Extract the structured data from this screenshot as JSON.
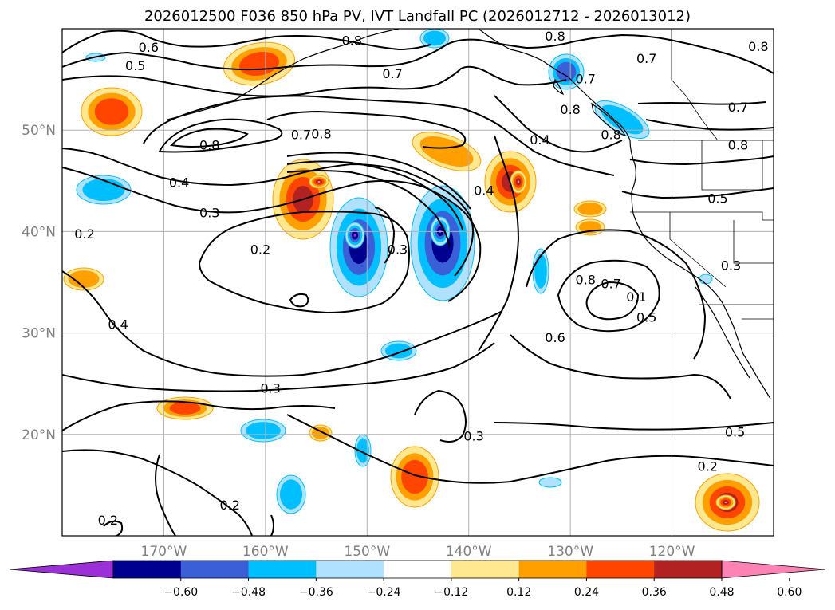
{
  "title": "2026012500 F036 850 hPa PV, IVT Landfall PC (2026012712 - 2026013012)",
  "map": {
    "lon_ticks": [
      {
        "value": -170,
        "label": "170°W"
      },
      {
        "value": -160,
        "label": "160°W"
      },
      {
        "value": -150,
        "label": "150°W"
      },
      {
        "value": -140,
        "label": "140°W"
      },
      {
        "value": -130,
        "label": "130°W"
      },
      {
        "value": -120,
        "label": "120°W"
      }
    ],
    "lat_ticks": [
      {
        "value": 50,
        "label": "50°N"
      },
      {
        "value": 40,
        "label": "40°N"
      },
      {
        "value": 30,
        "label": "30°N"
      },
      {
        "value": 20,
        "label": "20°N"
      }
    ],
    "contour_labels": [
      {
        "text": "0.6",
        "lon": -171.5,
        "lat": 58.1
      },
      {
        "text": "0.5",
        "lon": -172.8,
        "lat": 56.3
      },
      {
        "text": "0.8",
        "lon": -151.5,
        "lat": 58.8
      },
      {
        "text": "0.7",
        "lon": -147.5,
        "lat": 55.5
      },
      {
        "text": "0.8",
        "lon": -131.5,
        "lat": 59.2
      },
      {
        "text": "0.7",
        "lon": -128.5,
        "lat": 55.0
      },
      {
        "text": "0.8",
        "lon": -130.0,
        "lat": 52.0
      },
      {
        "text": "0.8",
        "lon": -126.0,
        "lat": 49.5
      },
      {
        "text": "0.7",
        "lon": -122.5,
        "lat": 57.0
      },
      {
        "text": "0.8",
        "lon": -111.5,
        "lat": 58.2
      },
      {
        "text": "0.7",
        "lon": -113.5,
        "lat": 52.2
      },
      {
        "text": "0.8",
        "lon": -113.5,
        "lat": 48.5
      },
      {
        "text": "0.8",
        "lon": -165.5,
        "lat": 48.5
      },
      {
        "text": "0.7",
        "lon": -156.5,
        "lat": 49.5
      },
      {
        "text": "0.8",
        "lon": -154.5,
        "lat": 49.6
      },
      {
        "text": "0.4",
        "lon": -168.5,
        "lat": 44.8
      },
      {
        "text": "0.3",
        "lon": -165.5,
        "lat": 41.8
      },
      {
        "text": "0.2",
        "lon": -177.8,
        "lat": 39.7
      },
      {
        "text": "0.2",
        "lon": -160.5,
        "lat": 38.2
      },
      {
        "text": "0.3",
        "lon": -147.0,
        "lat": 38.2
      },
      {
        "text": "0.4",
        "lon": -133.0,
        "lat": 49.0
      },
      {
        "text": "0.4",
        "lon": -138.5,
        "lat": 44.0
      },
      {
        "text": "0.5",
        "lon": -115.5,
        "lat": 43.2
      },
      {
        "text": "0.3",
        "lon": -114.2,
        "lat": 36.6
      },
      {
        "text": "0.8",
        "lon": -128.5,
        "lat": 35.2
      },
      {
        "text": "0.7",
        "lon": -126.0,
        "lat": 34.8
      },
      {
        "text": "0.1",
        "lon": -123.5,
        "lat": 33.5
      },
      {
        "text": "0.5",
        "lon": -122.5,
        "lat": 31.5
      },
      {
        "text": "0.4",
        "lon": -174.5,
        "lat": 30.8
      },
      {
        "text": "0.6",
        "lon": -131.5,
        "lat": 29.5
      },
      {
        "text": "0.3",
        "lon": -159.5,
        "lat": 24.5
      },
      {
        "text": "0.3",
        "lon": -139.5,
        "lat": 19.8
      },
      {
        "text": "0.5",
        "lon": -113.8,
        "lat": 20.2
      },
      {
        "text": "0.2",
        "lon": -116.5,
        "lat": 16.8
      },
      {
        "text": "0.2",
        "lon": -163.5,
        "lat": 13.0
      },
      {
        "text": "0.2",
        "lon": -175.5,
        "lat": 11.5
      }
    ]
  },
  "colorbar": {
    "levels": [
      -0.72,
      -0.6,
      -0.48,
      -0.36,
      -0.24,
      -0.12,
      0.12,
      0.24,
      0.36,
      0.48,
      0.6,
      0.72
    ],
    "tick_labels": [
      "−0.60",
      "−0.48",
      "−0.36",
      "−0.24",
      "−0.12",
      "0.12",
      "0.24",
      "0.36",
      "0.48",
      "0.60"
    ],
    "colors": [
      "#9b30d9",
      "#000090",
      "#3a5fd6",
      "#00bfff",
      "#b0e2ff",
      "#ffffff",
      "#ffe890",
      "#ffa000",
      "#ff4500",
      "#b22222",
      "#ff82b4"
    ]
  },
  "colors": {
    "grid": "#b0b0b0",
    "tick_text": "#808080",
    "contour": "#000000"
  }
}
